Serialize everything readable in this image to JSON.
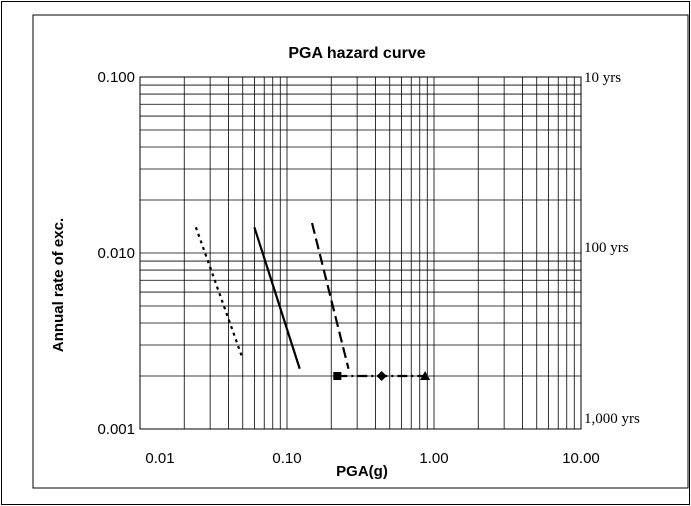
{
  "chart_data": {
    "type": "line",
    "title": "PGA hazard curve",
    "xlabel": "PGA(g)",
    "ylabel": "Annual rate of exc.",
    "xscale": "log",
    "yscale": "log",
    "xlim": [
      0.01,
      10
    ],
    "ylim": [
      0.001,
      0.1
    ],
    "grid": true,
    "x_ticks": [
      "0.01",
      "0.10",
      "1.00",
      "10.00"
    ],
    "y_ticks": [
      "0.001",
      "0.010",
      "0.100"
    ],
    "secondary_y_ticks": [
      {
        "rate": 0.1,
        "label": "10 yrs"
      },
      {
        "rate": 0.01,
        "label": "100 yrs"
      },
      {
        "rate": 0.001,
        "label": "1,000 yrs"
      }
    ],
    "series": [
      {
        "style": "dotted",
        "color": "#000000",
        "points": [
          [
            0.024,
            0.014
          ],
          [
            0.05,
            0.0025
          ]
        ]
      },
      {
        "style": "solid",
        "color": "#000000",
        "points": [
          [
            0.06,
            0.014
          ],
          [
            0.122,
            0.0022
          ]
        ]
      },
      {
        "style": "dashed",
        "color": "#000000",
        "points": [
          [
            0.148,
            0.0148
          ],
          [
            0.262,
            0.0022
          ]
        ]
      },
      {
        "style": "dash-dot",
        "color": "#000000",
        "marker": "none",
        "points": [
          [
            0.22,
            0.002
          ],
          [
            0.87,
            0.002
          ]
        ]
      }
    ],
    "markers": [
      {
        "shape": "square",
        "x": 0.22,
        "y": 0.002
      },
      {
        "shape": "diamond",
        "x": 0.44,
        "y": 0.002
      },
      {
        "shape": "triangle",
        "x": 0.87,
        "y": 0.002
      }
    ]
  }
}
